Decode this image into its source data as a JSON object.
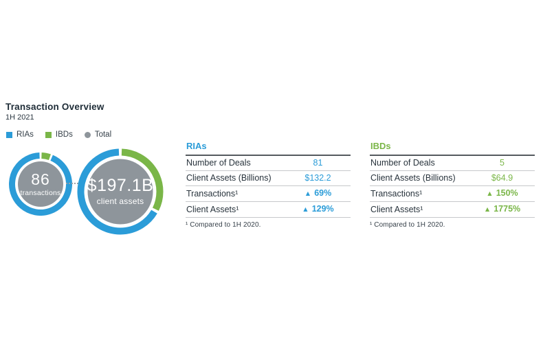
{
  "colors": {
    "blue": "#2B9CD8",
    "green": "#7AB648",
    "gray": "#8E959B",
    "text_dark": "#1E2C37"
  },
  "header": {
    "title": "Transaction Overview",
    "subtitle": "1H 2021"
  },
  "legend": {
    "items": [
      {
        "label": "RIAs",
        "color": "#2B9CD8",
        "shape": "square"
      },
      {
        "label": "IBDs",
        "color": "#7AB648",
        "shape": "square"
      },
      {
        "label": "Total",
        "color": "#8E959B",
        "shape": "circle"
      }
    ]
  },
  "tables": [
    {
      "title": "RIAs",
      "rows": [
        {
          "label": "Number of Deals",
          "arrow": "",
          "value": "81"
        },
        {
          "label": "Client Assets (Billions)",
          "arrow": "",
          "value": "$132.2"
        },
        {
          "label": "Transactions¹",
          "arrow": "▲",
          "value": "69%"
        },
        {
          "label": "Client Assets¹",
          "arrow": "▲",
          "value": "129%"
        }
      ],
      "footnote": "¹ Compared to 1H 2020."
    },
    {
      "title": "IBDs",
      "rows": [
        {
          "label": "Number of Deals",
          "arrow": "",
          "value": "5"
        },
        {
          "label": "Client Assets (Billions)",
          "arrow": "",
          "value": "$64.9"
        },
        {
          "label": "Transactions¹",
          "arrow": "▲",
          "value": "150%"
        },
        {
          "label": "Client Assets¹",
          "arrow": "▲",
          "value": "1775%"
        }
      ],
      "footnote": "¹ Compared to 1H 2020."
    }
  ],
  "chart_data": [
    {
      "type": "pie",
      "subtype": "donut",
      "title": "Total transactions 1H 2021",
      "center_label": "86",
      "center_sublabel": "transactions",
      "total": 86,
      "slices": [
        {
          "label": "IBDs",
          "value": 5,
          "color": "#7AB648"
        },
        {
          "label": "RIAs",
          "value": 81,
          "color": "#2B9CD8"
        }
      ],
      "center_color": "#8E959B"
    },
    {
      "type": "pie",
      "subtype": "donut",
      "title": "Total client assets 1H 2021",
      "center_label": "$197.1B",
      "center_sublabel": "client assets",
      "total": 197.1,
      "slices": [
        {
          "label": "IBDs",
          "value": 64.9,
          "color": "#7AB648"
        },
        {
          "label": "RIAs",
          "value": 132.2,
          "color": "#2B9CD8"
        }
      ],
      "center_color": "#8E959B"
    }
  ]
}
